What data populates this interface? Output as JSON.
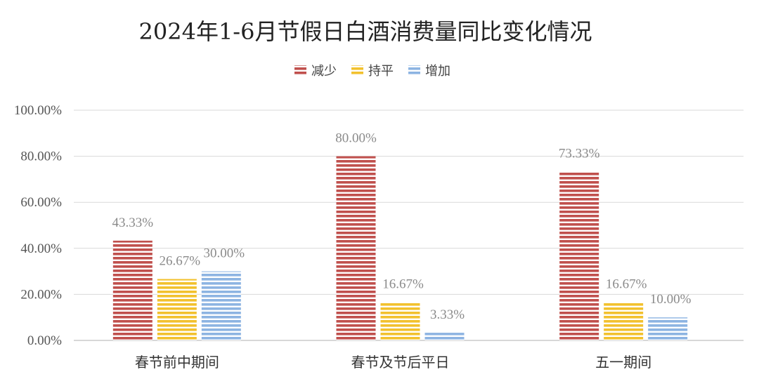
{
  "chart_data": {
    "type": "bar",
    "title": "2024年1-6月节假日白酒消费量同比变化情况",
    "categories": [
      "春节前中期间",
      "春节及节后平日",
      "五一期间"
    ],
    "series": [
      {
        "name": "减少",
        "values": [
          43.33,
          80.0,
          73.33
        ],
        "color": "#c0504d"
      },
      {
        "name": "持平",
        "values": [
          26.67,
          16.67,
          16.67
        ],
        "color": "#f2c12e"
      },
      {
        "name": "增加",
        "values": [
          30.0,
          3.33,
          10.0
        ],
        "color": "#8db4e2"
      }
    ],
    "data_labels": [
      [
        "43.33%",
        "80.00%",
        "73.33%"
      ],
      [
        "26.67%",
        "16.67%",
        "16.67%"
      ],
      [
        "30.00%",
        "3.33%",
        "10.00%"
      ]
    ],
    "yticks": [
      "0.00%",
      "20.00%",
      "40.00%",
      "60.00%",
      "80.00%",
      "100.00%"
    ],
    "ylim": [
      0,
      100
    ],
    "ytick_step": 20,
    "grid": true,
    "legend_position": "top-center",
    "bar_style": "horizontal-stripes"
  }
}
